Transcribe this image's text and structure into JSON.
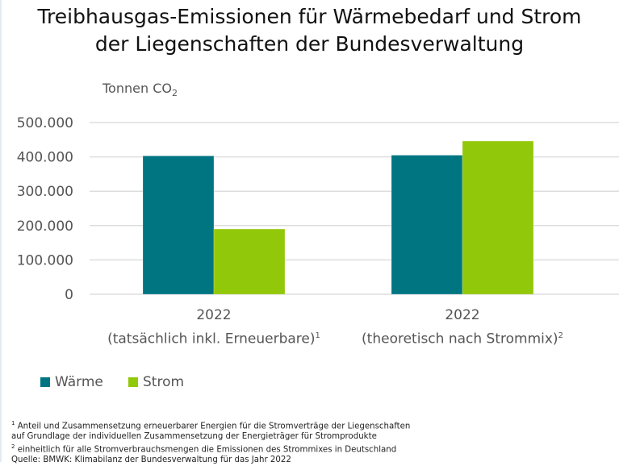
{
  "title_lines": [
    "Treibhausgas-Emissionen für Wärmebedarf und Strom",
    "der Liegenschaften der Bundesverwaltung"
  ],
  "colors": {
    "waerme": "#007582",
    "strom": "#92c80a",
    "grid": "#dddddd"
  },
  "chart_data": {
    "type": "bar",
    "title": "Treibhausgas-Emissionen für Wärmebedarf und Strom der Liegenschaften der Bundesverwaltung",
    "ylabel": "Tonnen CO",
    "ylabel_sub": "2",
    "ylim": [
      0,
      500000
    ],
    "yticks": [
      0,
      100000,
      200000,
      300000,
      400000,
      500000
    ],
    "ytick_labels": [
      "0",
      "100.000",
      "200.000",
      "300.000",
      "400.000",
      "500.000"
    ],
    "grid": true,
    "legend_position": "bottom-left",
    "categories": [
      {
        "label": "2022",
        "sublabel": "(tatsächlich inkl. Erneuerbare)",
        "footnote": "1"
      },
      {
        "label": "2022",
        "sublabel": "(theoretisch nach Strommix)",
        "footnote": "2"
      }
    ],
    "series": [
      {
        "name": "Wärme",
        "values": [
          403000,
          405000
        ]
      },
      {
        "name": "Strom",
        "values": [
          190000,
          446000
        ]
      }
    ]
  },
  "footnotes": [
    {
      "mark": "1",
      "text": " Anteil und Zusammensetzung erneuerbarer Energien für die Stromverträge der Liegenschaften"
    },
    {
      "mark": "",
      "text": "auf Grundlage der individuellen Zusammensetzung der Energieträger für Stromprodukte"
    },
    {
      "mark": "2",
      "text": " einheitlich für alle Stromverbrauchsmengen die Emissionen des Strommixes in Deutschland"
    },
    {
      "mark": "",
      "text": "Quelle: BMWK: Klimabilanz der Bundesverwaltung für das Jahr 2022"
    }
  ]
}
